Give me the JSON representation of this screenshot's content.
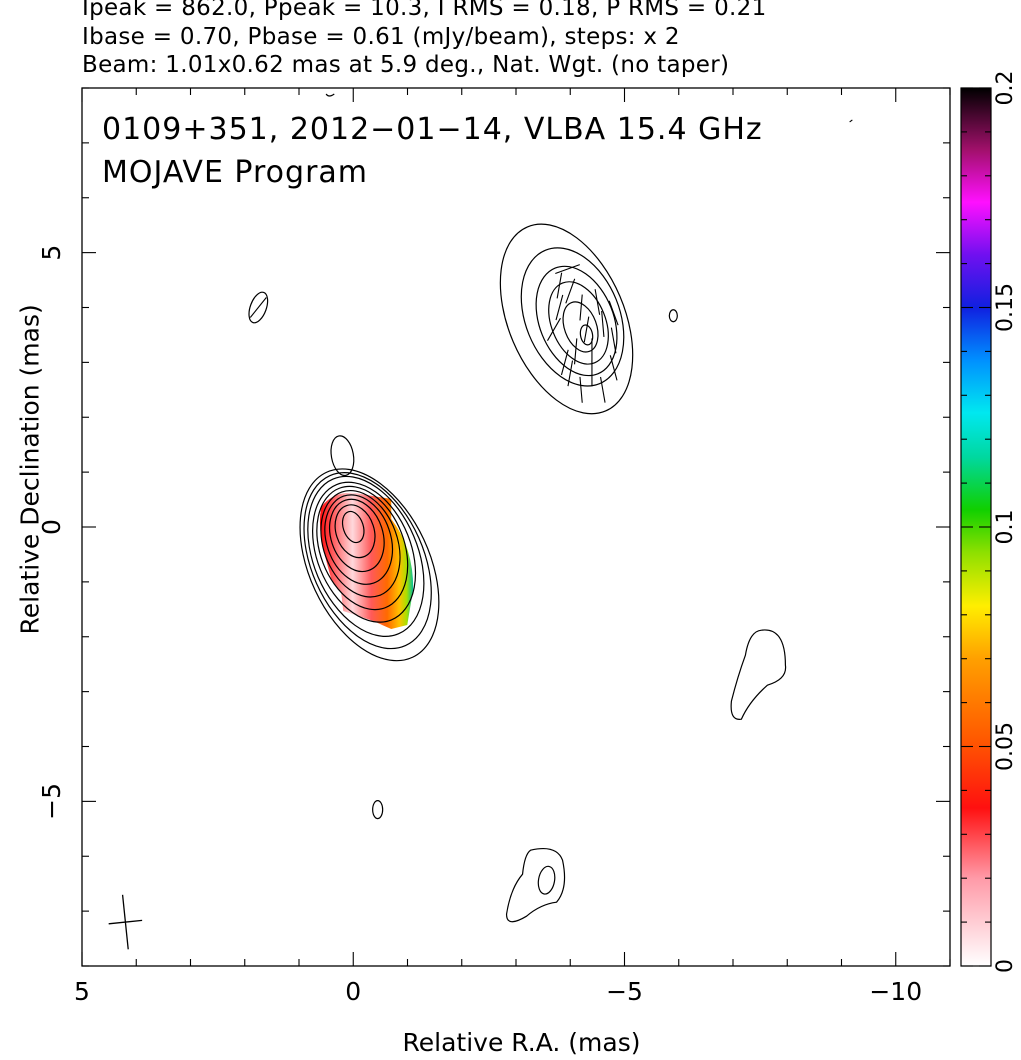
{
  "header": {
    "line1": "Ipeak = 862.0, Ppeak = 10.3, I RMS = 0.18, P RMS = 0.21",
    "line2": "Ibase = 0.70, Pbase = 0.61 (mJy/beam), steps: x 2",
    "line3": "Beam: 1.01x0.62 mas at 5.9 deg., Nat. Wgt. (no taper)"
  },
  "overlay": {
    "line1": "0109+351, 2012−01−14, VLBA 15.4 GHz",
    "line2": "MOJAVE Program"
  },
  "chart_data": {
    "type": "contour",
    "xlabel": "Relative R.A. (mas)",
    "ylabel": "Relative Declination (mas)",
    "xlim": [
      5.0,
      -11.0
    ],
    "ylim": [
      -8.0,
      8.0
    ],
    "xticks": [
      5,
      0,
      -5,
      -10
    ],
    "xtick_labels": [
      "5",
      "0",
      "−5",
      "−10"
    ],
    "yticks": [
      -5,
      0,
      5
    ],
    "ytick_labels": [
      "−5",
      "0",
      "5"
    ],
    "colorbar": {
      "min": 0,
      "max": 0.2,
      "ticks": [
        0,
        0.05,
        0.1,
        0.15,
        0.2
      ],
      "tick_labels": [
        "0",
        "0.05",
        "0.1",
        "0.15",
        "0.2"
      ]
    },
    "beam": {
      "major_mas": 1.01,
      "minor_mas": 0.62,
      "pa_deg": 5.9,
      "center": [
        4.2,
        -7.2
      ]
    },
    "core": {
      "center": [
        0.0,
        0.0
      ],
      "levels": 10
    },
    "jet_component": {
      "center": [
        -4.3,
        3.5
      ],
      "levels": 6
    },
    "isolated_contours": [
      {
        "center": [
          1.75,
          4.0
        ]
      },
      {
        "center": [
          -5.9,
          3.85
        ]
      },
      {
        "center": [
          -0.45,
          -5.15
        ]
      },
      {
        "center": [
          -7.45,
          -2.7
        ]
      },
      {
        "center": [
          -3.6,
          -6.4
        ]
      },
      {
        "center": [
          0.2,
          1.3
        ]
      }
    ],
    "polarization_fill": {
      "description": "fractional polarization color map on core",
      "values_range": [
        0.0,
        0.1
      ]
    },
    "grid": false
  }
}
